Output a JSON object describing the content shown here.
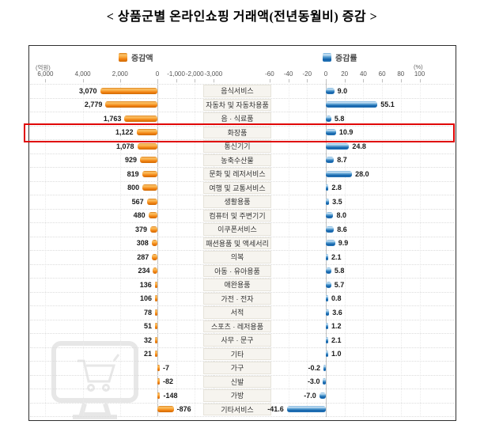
{
  "title": "< 상품군별 온라인쇼핑 거래액(전년동월비) 증감 >",
  "legend": {
    "amount_label": "증감액",
    "rate_label": "증감률",
    "amount_color": "#f08010",
    "rate_color": "#0d5ea8"
  },
  "left_axis": {
    "unit": "(억원)",
    "tick_labels": [
      "6,000",
      "4,000",
      "2,000",
      "0",
      "-1,000",
      "-2,000",
      "-3,000"
    ],
    "tick_values": [
      6000,
      4000,
      2000,
      0,
      -1000,
      -2000,
      -3000
    ]
  },
  "right_axis": {
    "unit": "(%)",
    "tick_labels": [
      "-60",
      "-40",
      "-20",
      "0",
      "20",
      "40",
      "60",
      "80",
      "100"
    ],
    "tick_values": [
      -60,
      -40,
      -20,
      0,
      20,
      40,
      60,
      80,
      100
    ]
  },
  "chart_data": {
    "type": "bar",
    "orientation": "horizontal",
    "categories": [
      "음식서비스",
      "자동차 및 자동차용품",
      "음 · 식료품",
      "화장품",
      "통신기기",
      "농축수산물",
      "문화 및 레저서비스",
      "여행 및 교통서비스",
      "생활용품",
      "컴퓨터 및 주변기기",
      "이쿠폰서비스",
      "패션용품 및 액세서리",
      "의복",
      "아동 · 유아용품",
      "애완용품",
      "가전 · 전자",
      "서적",
      "스포츠 · 레저용품",
      "사무 · 문구",
      "기타",
      "가구",
      "신발",
      "가방",
      "기타서비스"
    ],
    "series": [
      {
        "name": "증감액",
        "unit": "억원",
        "values": [
          3070,
          2779,
          1763,
          1122,
          1078,
          929,
          819,
          800,
          567,
          480,
          379,
          308,
          287,
          234,
          136,
          106,
          78,
          51,
          32,
          21,
          -7,
          -82,
          -148,
          -876
        ],
        "labels": [
          "3,070",
          "2,779",
          "1,763",
          "1,122",
          "1,078",
          "929",
          "819",
          "800",
          "567",
          "480",
          "379",
          "308",
          "287",
          "234",
          "136",
          "106",
          "78",
          "51",
          "32",
          "21",
          "-7",
          "-82",
          "-148",
          "-876"
        ]
      },
      {
        "name": "증감률",
        "unit": "%",
        "values": [
          9.0,
          55.1,
          5.8,
          10.9,
          24.8,
          8.7,
          28.0,
          2.8,
          3.5,
          8.0,
          8.6,
          9.9,
          2.1,
          5.8,
          5.7,
          0.8,
          3.6,
          1.2,
          2.1,
          1.0,
          -0.2,
          -3.0,
          -7.0,
          -41.6
        ],
        "labels": [
          "9.0",
          "55.1",
          "5.8",
          "10.9",
          "24.8",
          "8.7",
          "28.0",
          "2.8",
          "3.5",
          "8.0",
          "8.6",
          "9.9",
          "2.1",
          "5.8",
          "5.7",
          "0.8",
          "3.6",
          "1.2",
          "2.1",
          "1.0",
          "-0.2",
          "-3.0",
          "-7.0",
          "-41.6"
        ]
      }
    ],
    "highlight_category": "화장품",
    "left_axis_range": [
      6000,
      -3000
    ],
    "right_axis_range": [
      -60,
      100
    ],
    "grid": true,
    "legend_position": "top"
  }
}
